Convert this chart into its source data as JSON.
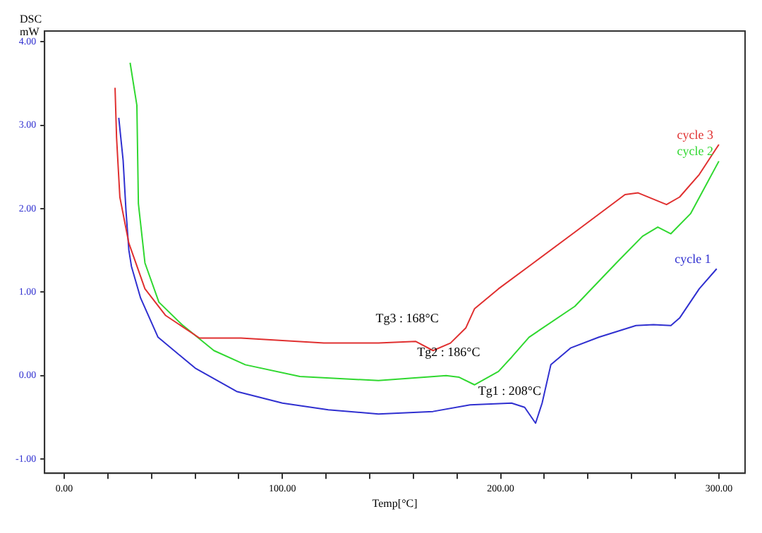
{
  "chart_data": {
    "type": "line",
    "xlabel": "Temp[°C]",
    "ylabel": "DSC\nmW",
    "xlim": [
      -9,
      312
    ],
    "ylim": [
      -1.17,
      4.13
    ],
    "xticks": [
      {
        "value": 0,
        "label": "0.00"
      },
      {
        "value": 20,
        "label": null
      },
      {
        "value": 40,
        "label": null
      },
      {
        "value": 60,
        "label": null
      },
      {
        "value": 80,
        "label": null
      },
      {
        "value": 100,
        "label": "100.00"
      },
      {
        "value": 120,
        "label": null
      },
      {
        "value": 140,
        "label": null
      },
      {
        "value": 160,
        "label": null
      },
      {
        "value": 180,
        "label": null
      },
      {
        "value": 200,
        "label": "200.00"
      },
      {
        "value": 220,
        "label": null
      },
      {
        "value": 240,
        "label": null
      },
      {
        "value": 260,
        "label": null
      },
      {
        "value": 280,
        "label": null
      },
      {
        "value": 300,
        "label": "300.00"
      }
    ],
    "yticks": [
      {
        "value": -1,
        "label": "-1.00"
      },
      {
        "value": 0,
        "label": "0.00"
      },
      {
        "value": 1,
        "label": "1.00"
      },
      {
        "value": 2,
        "label": "2.00"
      },
      {
        "value": 3,
        "label": "3.00"
      },
      {
        "value": 4,
        "label": "4.00"
      }
    ],
    "grid": false,
    "legend": false,
    "marker": "none",
    "line_style": "solid",
    "series": [
      {
        "name": "cycle 3",
        "color": "#e03030",
        "x": [
          23.3,
          24,
          25.5,
          29.6,
          37,
          46.5,
          62,
          81,
          119,
          144,
          161,
          169,
          177,
          184,
          188,
          199,
          215,
          234,
          257,
          263,
          276,
          282,
          291,
          300
        ],
        "values": [
          3.45,
          2.85,
          2.14,
          1.59,
          1.04,
          0.72,
          0.45,
          0.45,
          0.39,
          0.39,
          0.41,
          0.3,
          0.39,
          0.57,
          0.8,
          1.04,
          1.35,
          1.72,
          2.17,
          2.19,
          2.05,
          2.14,
          2.41,
          2.77
        ]
      },
      {
        "name": "cycle 2",
        "color": "#30d830",
        "x": [
          30.2,
          33.3,
          34,
          37,
          43.4,
          54,
          68.6,
          83,
          108,
          144,
          175,
          181,
          188,
          199,
          205,
          213,
          234,
          253,
          265,
          272,
          278,
          287,
          300
        ],
        "values": [
          3.75,
          3.24,
          2.06,
          1.35,
          0.88,
          0.61,
          0.3,
          0.13,
          -0.01,
          -0.06,
          0,
          -0.02,
          -0.11,
          0.05,
          0.22,
          0.46,
          0.83,
          1.35,
          1.67,
          1.78,
          1.7,
          1.94,
          2.57
        ]
      },
      {
        "name": "cycle 1",
        "color": "#3030d0",
        "x": [
          25,
          27,
          28.3,
          29.6,
          30.8,
          35,
          43,
          60,
          79,
          100,
          121,
          144,
          169,
          186,
          205,
          211,
          216,
          219,
          223,
          232,
          245,
          262,
          270,
          278,
          282,
          291,
          299
        ],
        "values": [
          3.09,
          2.58,
          1.98,
          1.51,
          1.31,
          0.93,
          0.46,
          0.09,
          -0.19,
          -0.33,
          -0.41,
          -0.46,
          -0.43,
          -0.35,
          -0.33,
          -0.38,
          -0.57,
          -0.33,
          0.13,
          0.33,
          0.46,
          0.6,
          0.61,
          0.6,
          0.69,
          1.04,
          1.28
        ]
      }
    ],
    "annotations": [
      {
        "text": "Tg3 : 168°C",
        "x": 169,
        "y": 0.3
      },
      {
        "text": "Tg2 : 186°C",
        "x": 188,
        "y": -0.11
      },
      {
        "text": "Tg1 : 208°C",
        "x": 216,
        "y": -0.57
      }
    ]
  }
}
